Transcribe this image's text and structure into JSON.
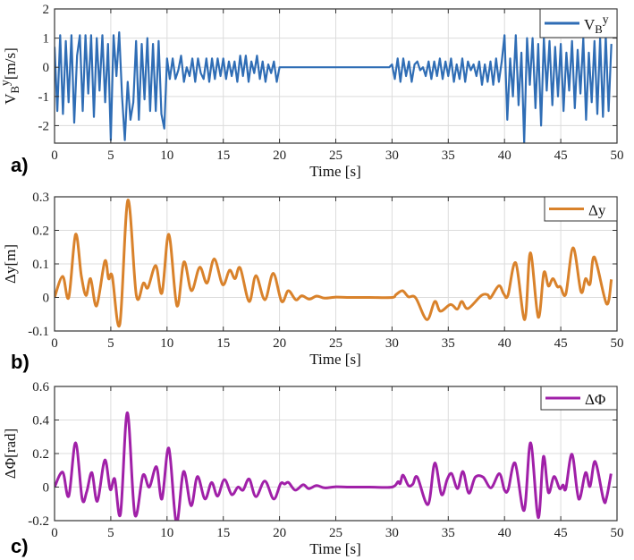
{
  "chart_data": [
    {
      "type": "line",
      "panel_label": "a)",
      "xlabel": "Time [s]",
      "ylabel": {
        "main": "V",
        "sub": "B",
        "sup": "y",
        "unit": "[m/s]"
      },
      "legend": {
        "main": "V",
        "sub": "B",
        "sup": "y",
        "placement": "top-right"
      },
      "color": "#2f6db5",
      "xlim": [
        0,
        50
      ],
      "ylim": [
        -2.6,
        2
      ],
      "xticks": [
        0,
        5,
        10,
        15,
        20,
        25,
        30,
        35,
        40,
        45,
        50
      ],
      "yticks": [
        2,
        1,
        0,
        -1,
        -2
      ],
      "grid": true,
      "sampled": {
        "t0": 0,
        "dt": 0.25,
        "values": [
          0.7,
          -1.5,
          1.1,
          -1.6,
          0.9,
          -1.2,
          1.1,
          -1.9,
          0.4,
          1.1,
          -1.5,
          1.1,
          -0.9,
          1.1,
          -1.7,
          1.0,
          -0.8,
          1.1,
          -1.2,
          0.8,
          -2.5,
          1.1,
          -0.3,
          1.2,
          -1.0,
          -2.5,
          -0.5,
          -1.8,
          -1.2,
          0.9,
          -1.8,
          0.8,
          -1.1,
          1.0,
          -1.5,
          0.8,
          -1.5,
          0.9,
          -1.6,
          -2.1,
          0.3,
          -0.4,
          0.3,
          -0.4,
          -0.1,
          0.4,
          -0.5,
          0.0,
          -0.3,
          0.3,
          -0.5,
          0.3,
          -0.2,
          -0.4,
          0.3,
          -0.5,
          0.3,
          -0.4,
          0.3,
          -0.3,
          0.3,
          -0.4,
          0.2,
          -0.3,
          0.2,
          -0.5,
          0.4,
          -0.3,
          0.4,
          -0.5,
          0.2,
          -0.2,
          0.4,
          -0.4,
          0.2,
          -0.5,
          0.1,
          -0.2,
          0.2,
          -0.5,
          0,
          0,
          0,
          0,
          0,
          0,
          0,
          0,
          0,
          0,
          0,
          0,
          0,
          0,
          0,
          0,
          0,
          0,
          0,
          0,
          0,
          0,
          0,
          0,
          0,
          0,
          0,
          0,
          0,
          0,
          0,
          0,
          0,
          0,
          0,
          0,
          0,
          0,
          0,
          0,
          0.1,
          -0.4,
          0.3,
          -0.5,
          0.3,
          -0.3,
          0.2,
          -0.5,
          0.1,
          0.2,
          -0.1,
          0.0,
          -0.3,
          0.2,
          -0.4,
          0.2,
          -0.3,
          0.3,
          -0.4,
          0.2,
          -0.3,
          0.3,
          -0.5,
          0.1,
          -0.4,
          0.3,
          -0.5,
          0.2,
          -0.1,
          0.1,
          -0.3,
          0.2,
          -0.6,
          0.1,
          -0.5,
          0.2,
          -0.6,
          0.3,
          -0.5,
          0.2,
          1.1,
          -1.8,
          0.3,
          -1.0,
          1.1,
          -1.3,
          0.5,
          -2.6,
          1.0,
          -0.6,
          1.0,
          -1.4,
          0.8,
          -2.0,
          1.0,
          -0.8,
          0.9,
          -1.3,
          0.7,
          -1.0,
          0.8,
          -1.5,
          0.5,
          -0.8,
          0.9,
          -1.4,
          0.6,
          -0.9,
          1.0,
          -1.8,
          0.5,
          -1.2,
          0.9,
          -1.6,
          1.0,
          -1.7,
          1.1,
          -1.5,
          0.8,
          -0.9
        ]
      }
    },
    {
      "type": "line",
      "panel_label": "b)",
      "xlabel": "Time [s]",
      "ylabel": {
        "main": "Δy[m]"
      },
      "legend": {
        "main": "Δy",
        "placement": "top-right"
      },
      "color": "#d9822b",
      "xlim": [
        0,
        50
      ],
      "ylim": [
        -0.1,
        0.3
      ],
      "xticks": [
        0,
        5,
        10,
        15,
        20,
        25,
        30,
        35,
        40,
        45,
        50
      ],
      "yticks": [
        0.3,
        0.2,
        0.1,
        0,
        -0.1
      ],
      "grid": true,
      "points": [
        [
          0,
          0
        ],
        [
          0.72,
          0.063
        ],
        [
          1.26,
          0
        ],
        [
          1.87,
          0.188
        ],
        [
          2.38,
          0.065
        ],
        [
          2.8,
          0.006
        ],
        [
          3.2,
          0.056
        ],
        [
          3.74,
          -0.025
        ],
        [
          4.47,
          0.108
        ],
        [
          4.8,
          0.056
        ],
        [
          5.13,
          0.063
        ],
        [
          5.8,
          -0.08
        ],
        [
          6.52,
          0.29
        ],
        [
          7.27,
          0.006
        ],
        [
          7.9,
          0.043
        ],
        [
          8.3,
          0.029
        ],
        [
          9.0,
          0.095
        ],
        [
          9.55,
          0.013
        ],
        [
          10.16,
          0.188
        ],
        [
          10.88,
          -0.025
        ],
        [
          11.5,
          0.106
        ],
        [
          12.17,
          0.02
        ],
        [
          12.9,
          0.09
        ],
        [
          13.55,
          0.043
        ],
        [
          14.2,
          0.115
        ],
        [
          14.95,
          0.038
        ],
        [
          15.56,
          0.081
        ],
        [
          16.04,
          0.056
        ],
        [
          16.5,
          0.088
        ],
        [
          17.3,
          -0.012
        ],
        [
          17.9,
          0.065
        ],
        [
          18.7,
          -0.007
        ],
        [
          19.44,
          0.072
        ],
        [
          20.19,
          -0.012
        ],
        [
          20.78,
          0.02
        ],
        [
          21.45,
          -0.007
        ],
        [
          21.98,
          0.005
        ],
        [
          22.65,
          -0.005
        ],
        [
          23.3,
          0.004
        ],
        [
          24,
          -0.002
        ],
        [
          25,
          0.001
        ],
        [
          26,
          0
        ],
        [
          28,
          0
        ],
        [
          30,
          0
        ],
        [
          30.34,
          0.008
        ],
        [
          30.93,
          0.02
        ],
        [
          31.46,
          0.002
        ],
        [
          32.1,
          -0.001
        ],
        [
          33.1,
          -0.066
        ],
        [
          33.8,
          -0.012
        ],
        [
          34.3,
          -0.041
        ],
        [
          35.2,
          -0.021
        ],
        [
          35.8,
          -0.035
        ],
        [
          36.2,
          -0.012
        ],
        [
          36.75,
          -0.033
        ],
        [
          37.95,
          0.006
        ],
        [
          38.5,
          0.008
        ],
        [
          38.75,
          -0.001
        ],
        [
          39.5,
          0.035
        ],
        [
          39.93,
          0.011
        ],
        [
          40.3,
          0.006
        ],
        [
          41.0,
          0.103
        ],
        [
          41.8,
          -0.066
        ],
        [
          42.3,
          0.133
        ],
        [
          43.0,
          -0.059
        ],
        [
          43.5,
          0.074
        ],
        [
          43.9,
          0.034
        ],
        [
          44.3,
          0.056
        ],
        [
          44.7,
          0.032
        ],
        [
          44.97,
          0.032
        ],
        [
          45.45,
          0.011
        ],
        [
          46.1,
          0.148
        ],
        [
          46.8,
          0.017
        ],
        [
          47.2,
          0.056
        ],
        [
          47.6,
          0.04
        ],
        [
          48.0,
          0.12
        ],
        [
          49.07,
          -0.019
        ],
        [
          49.5,
          0.054
        ]
      ]
    },
    {
      "type": "line",
      "panel_label": "c)",
      "xlabel": "Time [s]",
      "ylabel": {
        "main": "ΔΦ[rad]"
      },
      "legend": {
        "main": "ΔΦ",
        "placement": "top-right"
      },
      "color": "#a020a8",
      "xlim": [
        0,
        50
      ],
      "ylim": [
        -0.2,
        0.6
      ],
      "xticks": [
        0,
        5,
        10,
        15,
        20,
        25,
        30,
        35,
        40,
        45,
        50
      ],
      "yticks": [
        0.6,
        0.4,
        0.2,
        0,
        -0.2
      ],
      "grid": true,
      "points": [
        [
          0,
          0
        ],
        [
          0.72,
          0.089
        ],
        [
          1.26,
          -0.054
        ],
        [
          1.87,
          0.264
        ],
        [
          2.46,
          -0.071
        ],
        [
          2.86,
          -0.027
        ],
        [
          3.32,
          0.086
        ],
        [
          3.8,
          -0.084
        ],
        [
          4.47,
          0.161
        ],
        [
          4.95,
          -0.014
        ],
        [
          5.35,
          0.048
        ],
        [
          5.86,
          -0.161
        ],
        [
          6.47,
          0.443
        ],
        [
          7.14,
          -0.164
        ],
        [
          7.86,
          0.071
        ],
        [
          8.42,
          0
        ],
        [
          9.06,
          0.121
        ],
        [
          9.55,
          -0.071
        ],
        [
          10.16,
          0.232
        ],
        [
          10.83,
          -0.214
        ],
        [
          11.47,
          0.093
        ],
        [
          12.14,
          -0.111
        ],
        [
          12.7,
          0.063
        ],
        [
          13.37,
          -0.071
        ],
        [
          13.96,
          0.027
        ],
        [
          14.49,
          -0.054
        ],
        [
          15.1,
          0.045
        ],
        [
          15.75,
          -0.045
        ],
        [
          16.3,
          0
        ],
        [
          16.76,
          -0.018
        ],
        [
          17.3,
          0.048
        ],
        [
          17.9,
          -0.057
        ],
        [
          18.7,
          0.036
        ],
        [
          19.48,
          -0.071
        ],
        [
          20.1,
          0.021
        ],
        [
          20.45,
          0.018
        ],
        [
          20.8,
          0.027
        ],
        [
          21.4,
          -0.018
        ],
        [
          22.1,
          0.014
        ],
        [
          22.6,
          -0.009
        ],
        [
          23.3,
          0.009
        ],
        [
          24,
          -0.004
        ],
        [
          25,
          0.002
        ],
        [
          26,
          0
        ],
        [
          28,
          0
        ],
        [
          30,
          0
        ],
        [
          30.53,
          0.032
        ],
        [
          30.72,
          0.021
        ],
        [
          30.98,
          0.071
        ],
        [
          31.46,
          0.009
        ],
        [
          31.85,
          0.018
        ],
        [
          32.25,
          0.059
        ],
        [
          33.2,
          -0.104
        ],
        [
          33.8,
          0.143
        ],
        [
          34.4,
          -0.045
        ],
        [
          34.9,
          0.045
        ],
        [
          35.3,
          0.08
        ],
        [
          35.83,
          -0.009
        ],
        [
          36.3,
          0.093
        ],
        [
          36.83,
          -0.036
        ],
        [
          37.4,
          0.059
        ],
        [
          38.1,
          0.059
        ],
        [
          38.8,
          -0.004
        ],
        [
          39.54,
          0.08
        ],
        [
          40.0,
          -0.018
        ],
        [
          40.33,
          -0.014
        ],
        [
          40.94,
          0.143
        ],
        [
          41.74,
          -0.139
        ],
        [
          42.32,
          0.264
        ],
        [
          43.0,
          -0.182
        ],
        [
          43.46,
          0.182
        ],
        [
          43.9,
          -0.032
        ],
        [
          44.4,
          0.063
        ],
        [
          44.9,
          -0.009
        ],
        [
          45.2,
          0.013
        ],
        [
          45.45,
          -0.009
        ],
        [
          46.0,
          0.196
        ],
        [
          46.6,
          -0.071
        ],
        [
          47.2,
          0.086
        ],
        [
          47.6,
          0.004
        ],
        [
          48.06,
          0.152
        ],
        [
          48.8,
          -0.075
        ],
        [
          49.07,
          -0.063
        ],
        [
          49.47,
          0.08
        ]
      ]
    }
  ]
}
